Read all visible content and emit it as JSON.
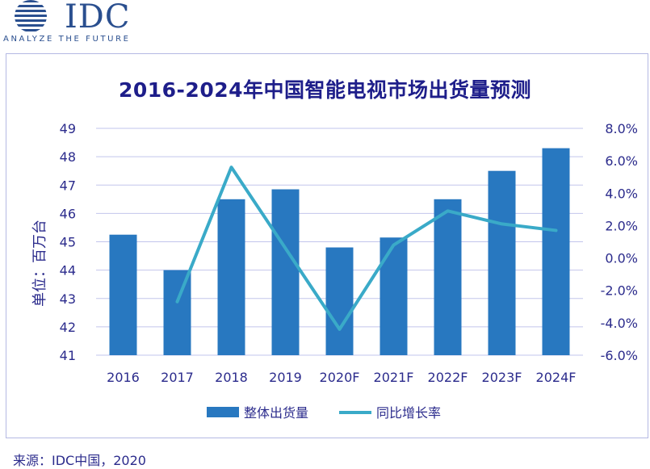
{
  "logo": {
    "wordmark": "IDC",
    "tagline": "ANALYZE THE FUTURE"
  },
  "chart_title": "2016-2024年中国智能电视市场出货量预测",
  "source": "来源：IDC中国，2020",
  "chart_data": {
    "type": "bar",
    "title": "2016-2024年中国智能电视市场出货量预测",
    "categories": [
      "2016",
      "2017",
      "2018",
      "2019",
      "2020F",
      "2021F",
      "2022F",
      "2023F",
      "2024F"
    ],
    "ylabel": "单位：百万台",
    "ylim": [
      41,
      49
    ],
    "y_ticks": [
      49,
      48,
      47,
      46,
      45,
      44,
      43,
      42,
      41
    ],
    "y2lim": [
      -6,
      8
    ],
    "y2_ticks": [
      "8.0%",
      "6.0%",
      "4.0%",
      "2.0%",
      "0.0%",
      "-2.0%",
      "-4.0%",
      "-6.0%"
    ],
    "grid": true,
    "legend_position": "bottom",
    "series": [
      {
        "name": "整体出货量",
        "type": "bar",
        "axis": "left",
        "color": "#2878c0",
        "values": [
          45.25,
          44.0,
          46.5,
          46.85,
          44.8,
          45.15,
          46.5,
          47.5,
          48.3
        ]
      },
      {
        "name": "同比增长率",
        "type": "line",
        "axis": "right",
        "color": "#3aaac8",
        "values": [
          null,
          -2.7,
          5.6,
          null,
          -4.4,
          0.8,
          2.9,
          2.1,
          1.7
        ]
      }
    ]
  }
}
